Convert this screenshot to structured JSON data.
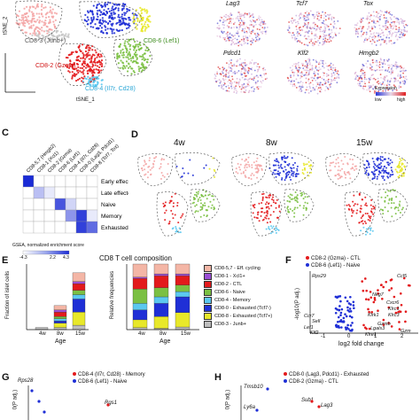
{
  "panel_a": {
    "ylabel": "tSNE_2",
    "xlabel": "tSNE_1",
    "cluster_labels": [
      "CD8-3 (Junb+)",
      "CD8-6 (Lef1)",
      "CD8-2 (Gzma)",
      "CD8-4 (Il7r, Cd28)"
    ],
    "colors": {
      "cd8_3": "#c8c8c8",
      "cd8_6": "#7bc043",
      "cd8_2": "#e31a1c",
      "cd8_4": "#5bc8f0",
      "cd8_0": "#1f2fd6",
      "cd8_1": "#e8e82a",
      "cd8_57": "#f4a6a6"
    }
  },
  "panel_b": {
    "genes": [
      "Lag3",
      "Tcf7",
      "Tox",
      "Pdcd1",
      "Klf2",
      "Hmgb2"
    ],
    "legend_title": "Expression",
    "legend_low": "low",
    "legend_high": "high"
  },
  "panel_c": {
    "letter": "C",
    "columns": [
      "CD8-5,7 (Hmgb2)",
      "CD8-1 (Xcl1)",
      "CD8-2 (Gzma)",
      "CD8-6 (Lef1)",
      "CD8-4 (Il7r, Cd28)",
      "CD8-0 (Lag3, Pdcd1)",
      "CD8-8 (Tcf7, Tox)"
    ],
    "rows": [
      "Early effector",
      "Late effector",
      "Naive",
      "Memory",
      "Exhausted"
    ],
    "legend_title": "GSEA, normalized enrichment score",
    "legend_ticks": [
      "-4.3",
      "2.2",
      "4.3"
    ]
  },
  "panel_d": {
    "letter": "D",
    "timepoints": [
      "4w",
      "8w",
      "15w"
    ]
  },
  "panel_e": {
    "letter": "E",
    "title": "CD8 T cell composition",
    "left_ylabel": "Fraction of islet cells",
    "right_ylabel": "Relative frequencies",
    "xlabel": "Age",
    "ages": [
      "4w",
      "8w",
      "15w"
    ],
    "legend": [
      {
        "label": "CD8-5,7 - Eff. cycling",
        "color": "#f4b6a6"
      },
      {
        "label": "CD8-1 - Xcl1+",
        "color": "#9b4fd6"
      },
      {
        "label": "CD8-2 - CTL",
        "color": "#e31a1c"
      },
      {
        "label": "CD8-6 - Naive",
        "color": "#7bc043"
      },
      {
        "label": "CD8-4 - Memory",
        "color": "#5bc8f0"
      },
      {
        "label": "CD8-0 - Exhausted (Tcf7-)",
        "color": "#1f2fd6"
      },
      {
        "label": "CD8-8 - Exhausted (Tcf7+)",
        "color": "#e8e82a"
      },
      {
        "label": "CD8-3 - Junb+",
        "color": "#bdbdbd"
      }
    ],
    "chart_data": [
      {
        "type": "bar",
        "categories": [
          "4w",
          "8w",
          "15w"
        ],
        "stacked": true,
        "series": [
          {
            "name": "CD8-3 - Junb+",
            "values": [
              0.01,
              0.01,
              0.02
            ]
          },
          {
            "name": "CD8-8 - Exhausted (Tcf7+)",
            "values": [
              0.0,
              0.02,
              0.06
            ]
          },
          {
            "name": "CD8-0 - Exhausted (Tcf7-)",
            "values": [
              0.0,
              0.01,
              0.06
            ]
          },
          {
            "name": "CD8-4 - Memory",
            "values": [
              0.0,
              0.01,
              0.02
            ]
          },
          {
            "name": "CD8-6 - Naive",
            "values": [
              0.0,
              0.01,
              0.02
            ]
          },
          {
            "name": "CD8-2 - CTL",
            "values": [
              0.0,
              0.02,
              0.03
            ]
          },
          {
            "name": "CD8-1 - Xcl1+",
            "values": [
              0.0,
              0.01,
              0.01
            ]
          },
          {
            "name": "CD8-5,7 - Eff. cycling",
            "values": [
              0.0,
              0.02,
              0.04
            ]
          }
        ],
        "ylim": [
          0,
          0.3
        ]
      },
      {
        "type": "bar",
        "categories": [
          "4w",
          "8w",
          "15w"
        ],
        "stacked": true,
        "series": [
          {
            "name": "CD8-3 - Junb+",
            "values": [
              3,
              2,
              4
            ]
          },
          {
            "name": "CD8-8 - Exhausted (Tcf7+)",
            "values": [
              12,
              18,
              22
            ]
          },
          {
            "name": "CD8-0 - Exhausted (Tcf7-)",
            "values": [
              15,
              20,
              24
            ]
          },
          {
            "name": "CD8-4 - Memory",
            "values": [
              10,
              10,
              8
            ]
          },
          {
            "name": "CD8-6 - Naive",
            "values": [
              22,
              14,
              10
            ]
          },
          {
            "name": "CD8-2 - CTL",
            "values": [
              16,
              18,
              14
            ]
          },
          {
            "name": "CD8-1 - Xcl1+",
            "values": [
              2,
              3,
              3
            ]
          },
          {
            "name": "CD8-5,7 - Eff. cycling",
            "values": [
              20,
              15,
              15
            ]
          }
        ],
        "ylim": [
          0,
          100
        ]
      }
    ]
  },
  "panel_f": {
    "letter": "F",
    "legend": [
      "CD8-2 (Gzma) - CTL",
      "CD8-6 (Lef1) - Naive"
    ],
    "ylabel": "-log10(P adj.)",
    "xlabel": "log2 fold change",
    "x_ticks": [
      "-1",
      "0",
      "1",
      "2"
    ],
    "red_genes": [
      "Ccl5",
      "Nkg7",
      "Cxcr6",
      "Klrc1",
      "Klrc3",
      "Klrk1",
      "Gzmb",
      "Lgals3",
      "Gzm",
      "Klre1"
    ],
    "blue_genes": [
      "Rps29",
      "Ccr7",
      "Sell",
      "Lef1",
      "Klf2"
    ]
  },
  "panel_g": {
    "letter": "G",
    "legend": [
      "CD8-4 (Il7r, Cd28) - Memory",
      "CD8-6 (Lef1) - Naive"
    ],
    "ylabel": "0(P adj.)",
    "genes": [
      "Rps28",
      "Rgs1"
    ]
  },
  "panel_h": {
    "letter": "H",
    "legend": [
      "CD8-0 (Lag3, Pdcd1) - Exhausted",
      "CD8-2 (Gzma) - CTL"
    ],
    "ylabel": "0(P adj.)",
    "genes": [
      "Tmsb10",
      "Ly6a",
      "Sub1",
      "Lag3"
    ]
  }
}
